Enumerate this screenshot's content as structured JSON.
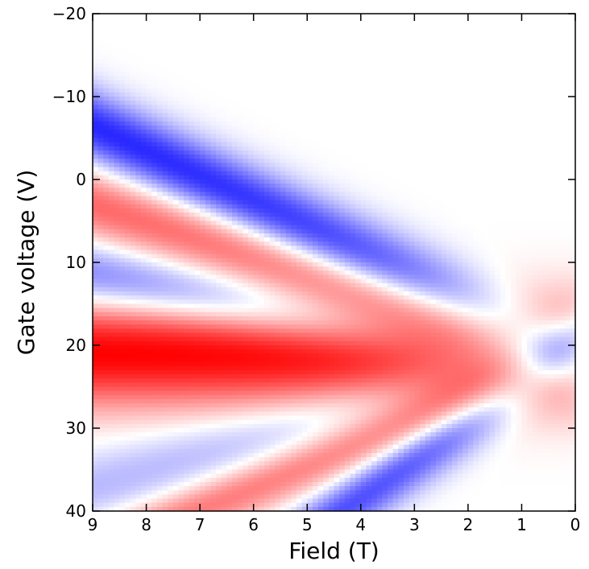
{
  "chart_data": {
    "type": "heatmap",
    "title": "",
    "xlabel": "Field (T)",
    "ylabel": "Gate voltage (V)",
    "xlim": [
      9,
      0
    ],
    "ylim": [
      -20,
      40
    ],
    "x_ticks": [
      9,
      8,
      7,
      6,
      5,
      4,
      3,
      2,
      1,
      0
    ],
    "x_tick_labels": [
      "9",
      "8",
      "7",
      "6",
      "5",
      "4",
      "3",
      "2",
      "1",
      "0"
    ],
    "y_ticks": [
      -20,
      -10,
      0,
      10,
      20,
      30,
      40
    ],
    "y_tick_labels": [
      "−20",
      "−10",
      "0",
      "10",
      "20",
      "30",
      "40"
    ],
    "colormap": "bwr",
    "colors": {
      "negative": "#0000ff",
      "zero": "#ffffff",
      "positive": "#ff0000"
    },
    "grid": false,
    "legend": "none",
    "bands": [
      {
        "sign": "positive",
        "center_at_x0": 21,
        "slope": 0,
        "amplitude": 1.0,
        "width": 6.5
      },
      {
        "sign": "negative",
        "center_at_x0": 22,
        "slope": -1.15,
        "amplitude": 0.55,
        "width": 4.0
      },
      {
        "sign": "positive",
        "center_at_x0": 21.5,
        "slope": -2.05,
        "amplitude": 0.6,
        "width": 4.5
      },
      {
        "sign": "negative",
        "center_at_x0": 21.5,
        "slope": -3.1,
        "amplitude": 0.85,
        "width": 4.5
      },
      {
        "sign": "negative",
        "center_at_x0": 20.5,
        "slope": 1.85,
        "amplitude": 0.28,
        "width": 4.5
      },
      {
        "sign": "positive",
        "center_at_x0": 21.5,
        "slope": 2.6,
        "amplitude": 0.55,
        "width": 3.5
      },
      {
        "sign": "negative",
        "center_at_x0": 20,
        "slope": 4.6,
        "amplitude": 0.7,
        "width": 4.0
      }
    ]
  }
}
